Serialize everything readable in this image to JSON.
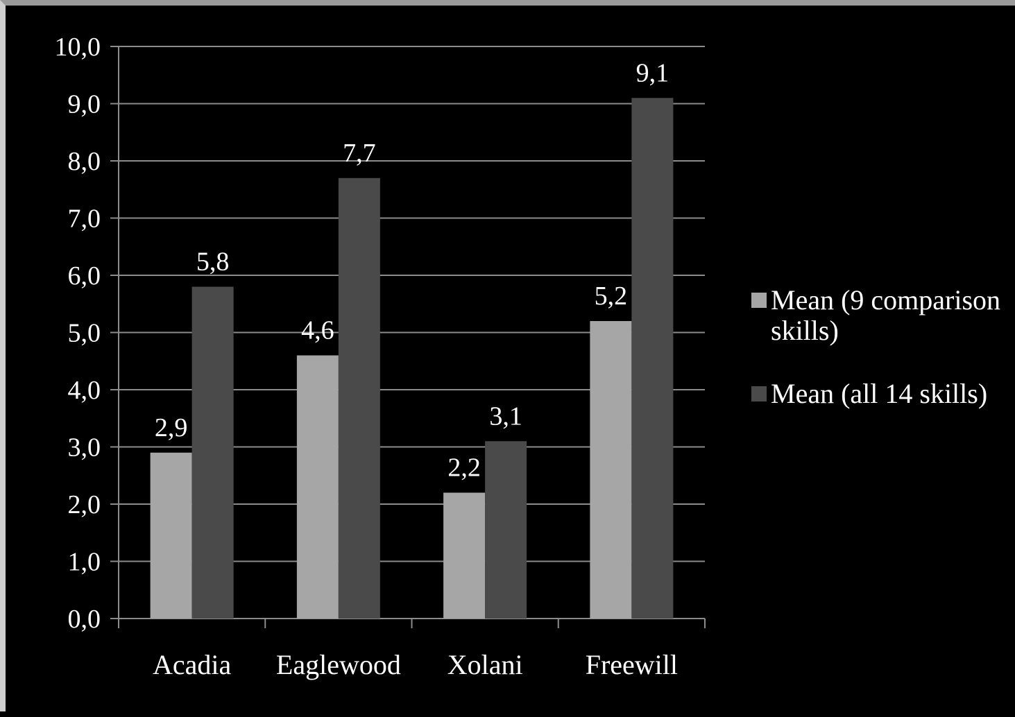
{
  "chart_data": {
    "type": "bar",
    "categories": [
      "Acadia",
      "Eaglewood",
      "Xolani",
      "Freewill"
    ],
    "series": [
      {
        "name": "Mean (9 comparison skills)",
        "values": [
          2.9,
          4.6,
          2.2,
          5.2
        ],
        "labels": [
          "2,9",
          "4,6",
          "2,2",
          "5,2"
        ],
        "color": "#a6a6a6"
      },
      {
        "name": "Mean (all 14 skills)",
        "values": [
          5.8,
          7.7,
          3.1,
          9.1
        ],
        "labels": [
          "5,8",
          "7,7",
          "3,1",
          "9,1"
        ],
        "color": "#4a4a4a"
      }
    ],
    "ylim": [
      0,
      10
    ],
    "yticks": [
      0,
      1,
      2,
      3,
      4,
      5,
      6,
      7,
      8,
      9,
      10
    ],
    "ytick_labels": [
      "0,0",
      "1,0",
      "2,0",
      "3,0",
      "4,0",
      "5,0",
      "6,0",
      "7,0",
      "8,0",
      "9,0",
      "10,0"
    ],
    "grid": true,
    "legend_position": "right",
    "background": "#000000",
    "text_color": "#ffffff",
    "grid_color": "#8c8c8c"
  }
}
